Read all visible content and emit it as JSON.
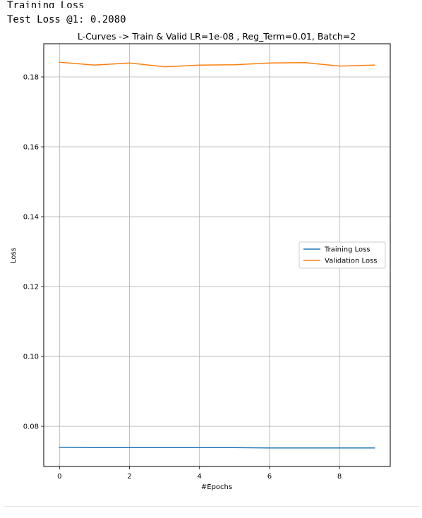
{
  "output": {
    "clipped_line": "Training Loss",
    "test_loss_text": "Test Loss @1: 0.2080"
  },
  "chart_data": {
    "type": "line",
    "title": "L-Curves -> Train & Valid LR=1e-08 , Reg_Term=0.01, Batch=2",
    "xlabel": "#Epochs",
    "ylabel": "Loss",
    "xlim": [
      -0.45,
      9.45
    ],
    "ylim": [
      0.0685,
      0.1895
    ],
    "xticks": [
      0,
      2,
      4,
      6,
      8
    ],
    "xtick_labels": [
      "0",
      "2",
      "4",
      "6",
      "8"
    ],
    "yticks": [
      0.08,
      0.1,
      0.12,
      0.14,
      0.16,
      0.18
    ],
    "ytick_labels": [
      "0.08",
      "0.10",
      "0.12",
      "0.14",
      "0.16",
      "0.18"
    ],
    "grid": true,
    "legend_position": "center-right",
    "x": [
      0,
      1,
      2,
      3,
      4,
      5,
      6,
      7,
      8,
      9
    ],
    "series": [
      {
        "name": "Training Loss",
        "color": "#1f77b4",
        "values": [
          0.074,
          0.0739,
          0.0739,
          0.0739,
          0.0739,
          0.0739,
          0.0738,
          0.0738,
          0.0738,
          0.0738
        ]
      },
      {
        "name": "Validation Loss",
        "color": "#ff7f0e",
        "values": [
          0.1842,
          0.1834,
          0.184,
          0.1829,
          0.1834,
          0.1835,
          0.184,
          0.1841,
          0.1831,
          0.1834
        ]
      }
    ]
  }
}
